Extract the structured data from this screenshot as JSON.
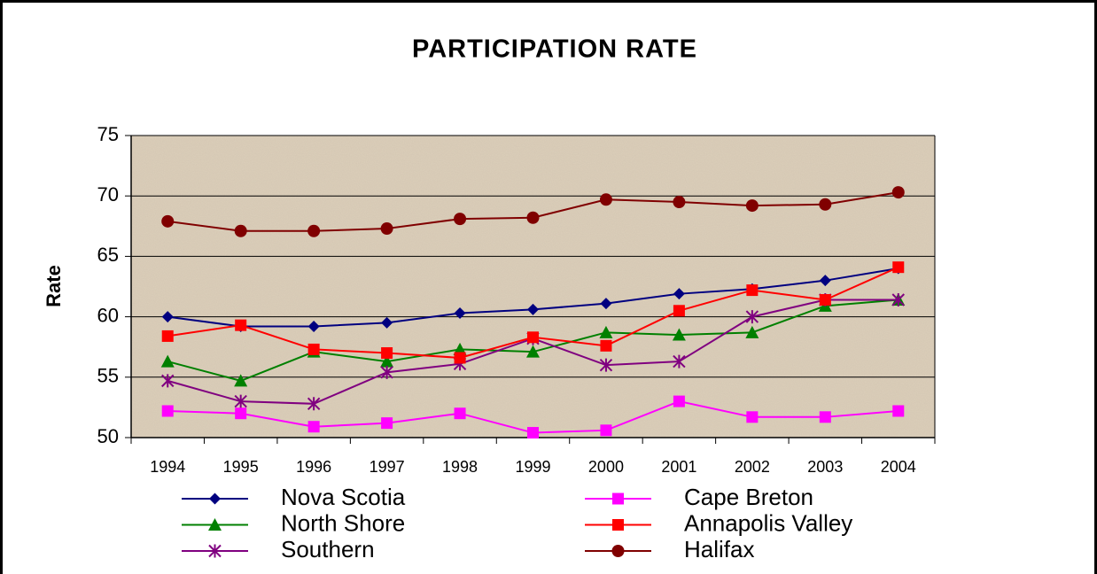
{
  "chart_data": {
    "type": "line",
    "title": "PARTICIPATION RATE",
    "y_label": "Rate",
    "categories": [
      "1994",
      "1995",
      "1996",
      "1997",
      "1998",
      "1999",
      "2000",
      "2001",
      "2002",
      "2003",
      "2004"
    ],
    "ylim": [
      50,
      75
    ],
    "yticks": [
      50,
      55,
      60,
      65,
      70,
      75
    ],
    "grid": true,
    "legend": "bottom",
    "series": [
      {
        "name": "Nova Scotia",
        "color": "#000080",
        "marker": "diamond",
        "values": [
          60.0,
          59.2,
          59.2,
          59.5,
          60.3,
          60.6,
          61.1,
          61.9,
          62.3,
          63.0,
          64.0
        ]
      },
      {
        "name": "North Shore",
        "color": "#008000",
        "marker": "triangle",
        "values": [
          56.3,
          54.7,
          57.1,
          56.3,
          57.3,
          57.1,
          58.7,
          58.5,
          58.7,
          60.9,
          61.4
        ]
      },
      {
        "name": "Southern",
        "color": "#800080",
        "marker": "star",
        "values": [
          54.7,
          53.0,
          52.8,
          55.4,
          56.1,
          58.2,
          56.0,
          56.3,
          60.0,
          61.4,
          61.4
        ]
      },
      {
        "name": "Cape Breton",
        "color": "#ff00ff",
        "marker": "square",
        "values": [
          52.2,
          52.0,
          50.9,
          51.2,
          52.0,
          50.4,
          50.6,
          53.0,
          51.7,
          51.7,
          52.2
        ]
      },
      {
        "name": "Annapolis Valley",
        "color": "#ff0000",
        "marker": "square",
        "values": [
          58.4,
          59.3,
          57.3,
          57.0,
          56.6,
          58.3,
          57.6,
          60.5,
          62.2,
          61.4,
          64.1
        ]
      },
      {
        "name": "Halifax",
        "color": "#800000",
        "marker": "circle",
        "values": [
          67.9,
          67.1,
          67.1,
          67.3,
          68.1,
          68.2,
          69.7,
          69.5,
          69.2,
          69.3,
          70.3
        ]
      }
    ]
  }
}
